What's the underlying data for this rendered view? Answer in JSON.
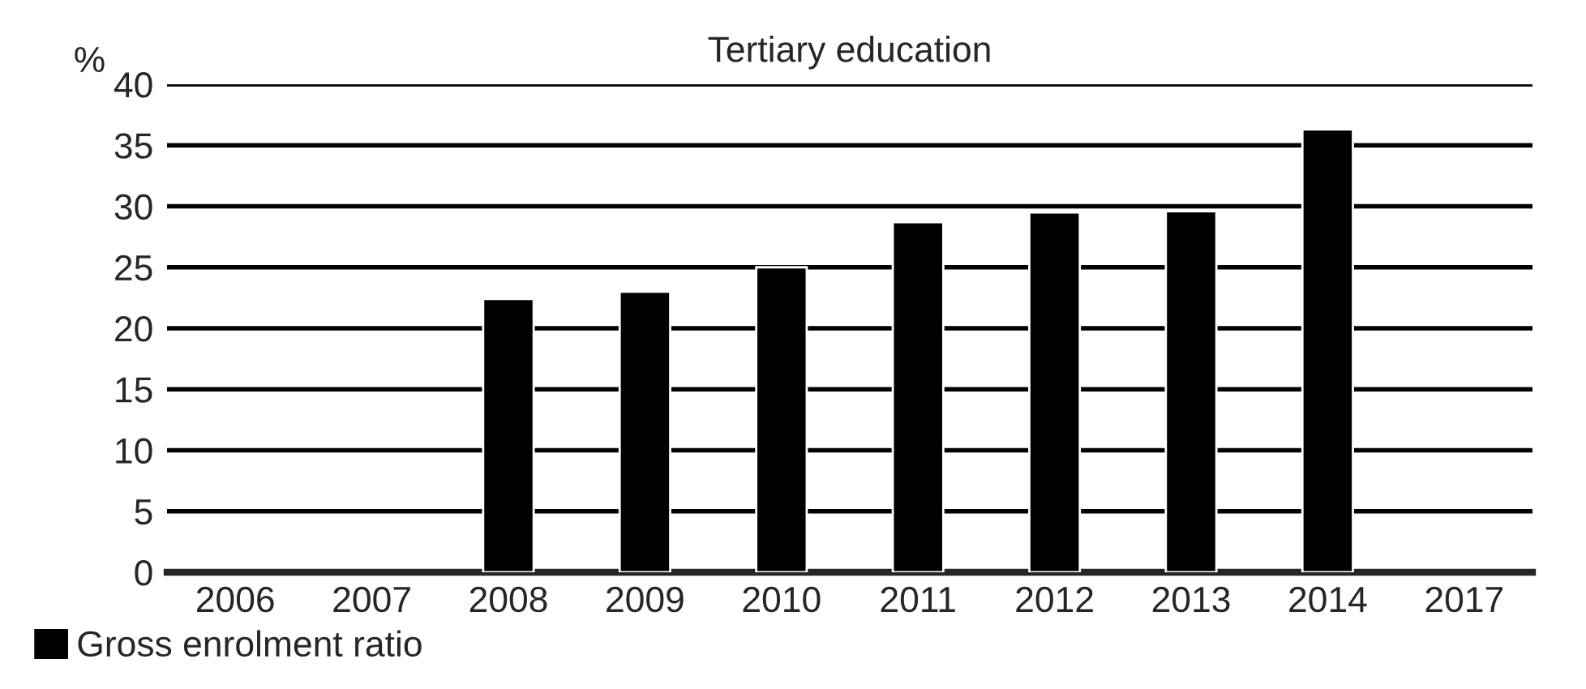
{
  "chart_data": {
    "type": "bar",
    "title": "Tertiary education",
    "ylabel": "%",
    "categories": [
      "2006",
      "2007",
      "2008",
      "2009",
      "2010",
      "2011",
      "2012",
      "2013",
      "2014",
      "2017"
    ],
    "series": [
      {
        "name": "Gross enrolment ratio",
        "color": "#000000",
        "values": [
          null,
          null,
          22.4,
          23.0,
          25.0,
          28.7,
          29.5,
          29.6,
          36.3,
          null
        ]
      }
    ],
    "ylim": [
      0,
      40
    ],
    "yticks": [
      0,
      5,
      10,
      15,
      20,
      25,
      30,
      35,
      40
    ],
    "grid": "y",
    "legend": "bottom left"
  }
}
